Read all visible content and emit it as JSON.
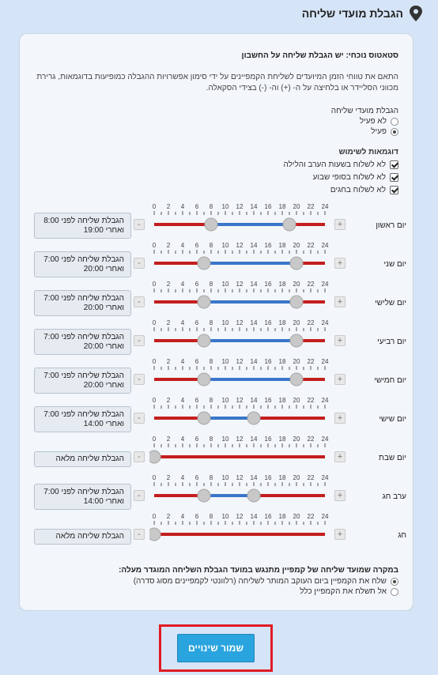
{
  "header": {
    "title": "הגבלת מועדי שליחה",
    "icon": "location-pin-icon"
  },
  "status_text": "סטאטוס נוכחי: יש הגבלת שליחה על החשבון",
  "description": "התאם את טווחי הזמן המיועדים לשליחת הקמפיינים על ידי סימון אפשרויות ההגבלה כמופיעות בדוגמאות, גרירת מכווני הסליידר או בלחיצה על ה- (+) וה- (-) בצידי הסקאלה.",
  "restriction": {
    "label": "הגבלת מועדי שליחה",
    "options": [
      {
        "label": "לא פעיל",
        "selected": false
      },
      {
        "label": "פעיל",
        "selected": true
      }
    ]
  },
  "examples": {
    "label": "דוגמאות לשימוש",
    "items": [
      {
        "label": "לא לשלוח בשעות הערב והלילה",
        "checked": true
      },
      {
        "label": "לא לשלוח בסופי שבוע",
        "checked": true
      },
      {
        "label": "לא לשלוח בחגים",
        "checked": true
      }
    ]
  },
  "scale_ticks": [
    "0",
    "2",
    "4",
    "6",
    "8",
    "10",
    "12",
    "14",
    "16",
    "18",
    "20",
    "22",
    "24"
  ],
  "days": [
    {
      "name": "יום ראשון",
      "from": 8,
      "to": 19,
      "line1": "הגבלת שליחה לפני 8:00",
      "line2": "ואחרי 19:00"
    },
    {
      "name": "יום שני",
      "from": 7,
      "to": 20,
      "line1": "הגבלת שליחה לפני 7:00",
      "line2": "ואחרי 20:00"
    },
    {
      "name": "יום שלישי",
      "from": 7,
      "to": 20,
      "line1": "הגבלת שליחה לפני 7:00",
      "line2": "ואחרי 20:00"
    },
    {
      "name": "יום רביעי",
      "from": 7,
      "to": 20,
      "line1": "הגבלת שליחה לפני 7:00",
      "line2": "ואחרי 20:00"
    },
    {
      "name": "יום חמישי",
      "from": 7,
      "to": 20,
      "line1": "הגבלת שליחה לפני 7:00",
      "line2": "ואחרי 20:00"
    },
    {
      "name": "יום שישי",
      "from": 7,
      "to": 14,
      "line1": "הגבלת שליחה לפני 7:00",
      "line2": "ואחרי 14:00"
    },
    {
      "name": "יום שבת",
      "from": 0,
      "to": 0,
      "line1": "הגבלת שליחה מלאה",
      "line2": ""
    },
    {
      "name": "ערב חג",
      "from": 7,
      "to": 14,
      "line1": "הגבלת שליחה לפני 7:00",
      "line2": "ואחרי 14:00"
    },
    {
      "name": "חג",
      "from": 0,
      "to": 0,
      "line1": "הגבלת שליחה מלאה",
      "line2": ""
    }
  ],
  "buttons": {
    "plus": "+",
    "minus": "-",
    "save": "שמור שינויים"
  },
  "fallback": {
    "question": "במקרה שמועד שליחה של קמפיין מתנגש במועד הגבלת השליחה המוגדר מעלה:",
    "options": [
      {
        "label": "שלח את הקמפיין ביום העוקב המותר לשליחה (רלוונטי לקמפיינים מסוג סדרה)",
        "selected": true
      },
      {
        "label": "אל תשלח את הקמפיין כלל",
        "selected": false
      }
    ]
  },
  "colors": {
    "restricted": "#c41e1e",
    "allowed": "#3a76c9",
    "save_button": "#2aa4df",
    "highlight_frame": "#e01b24"
  }
}
